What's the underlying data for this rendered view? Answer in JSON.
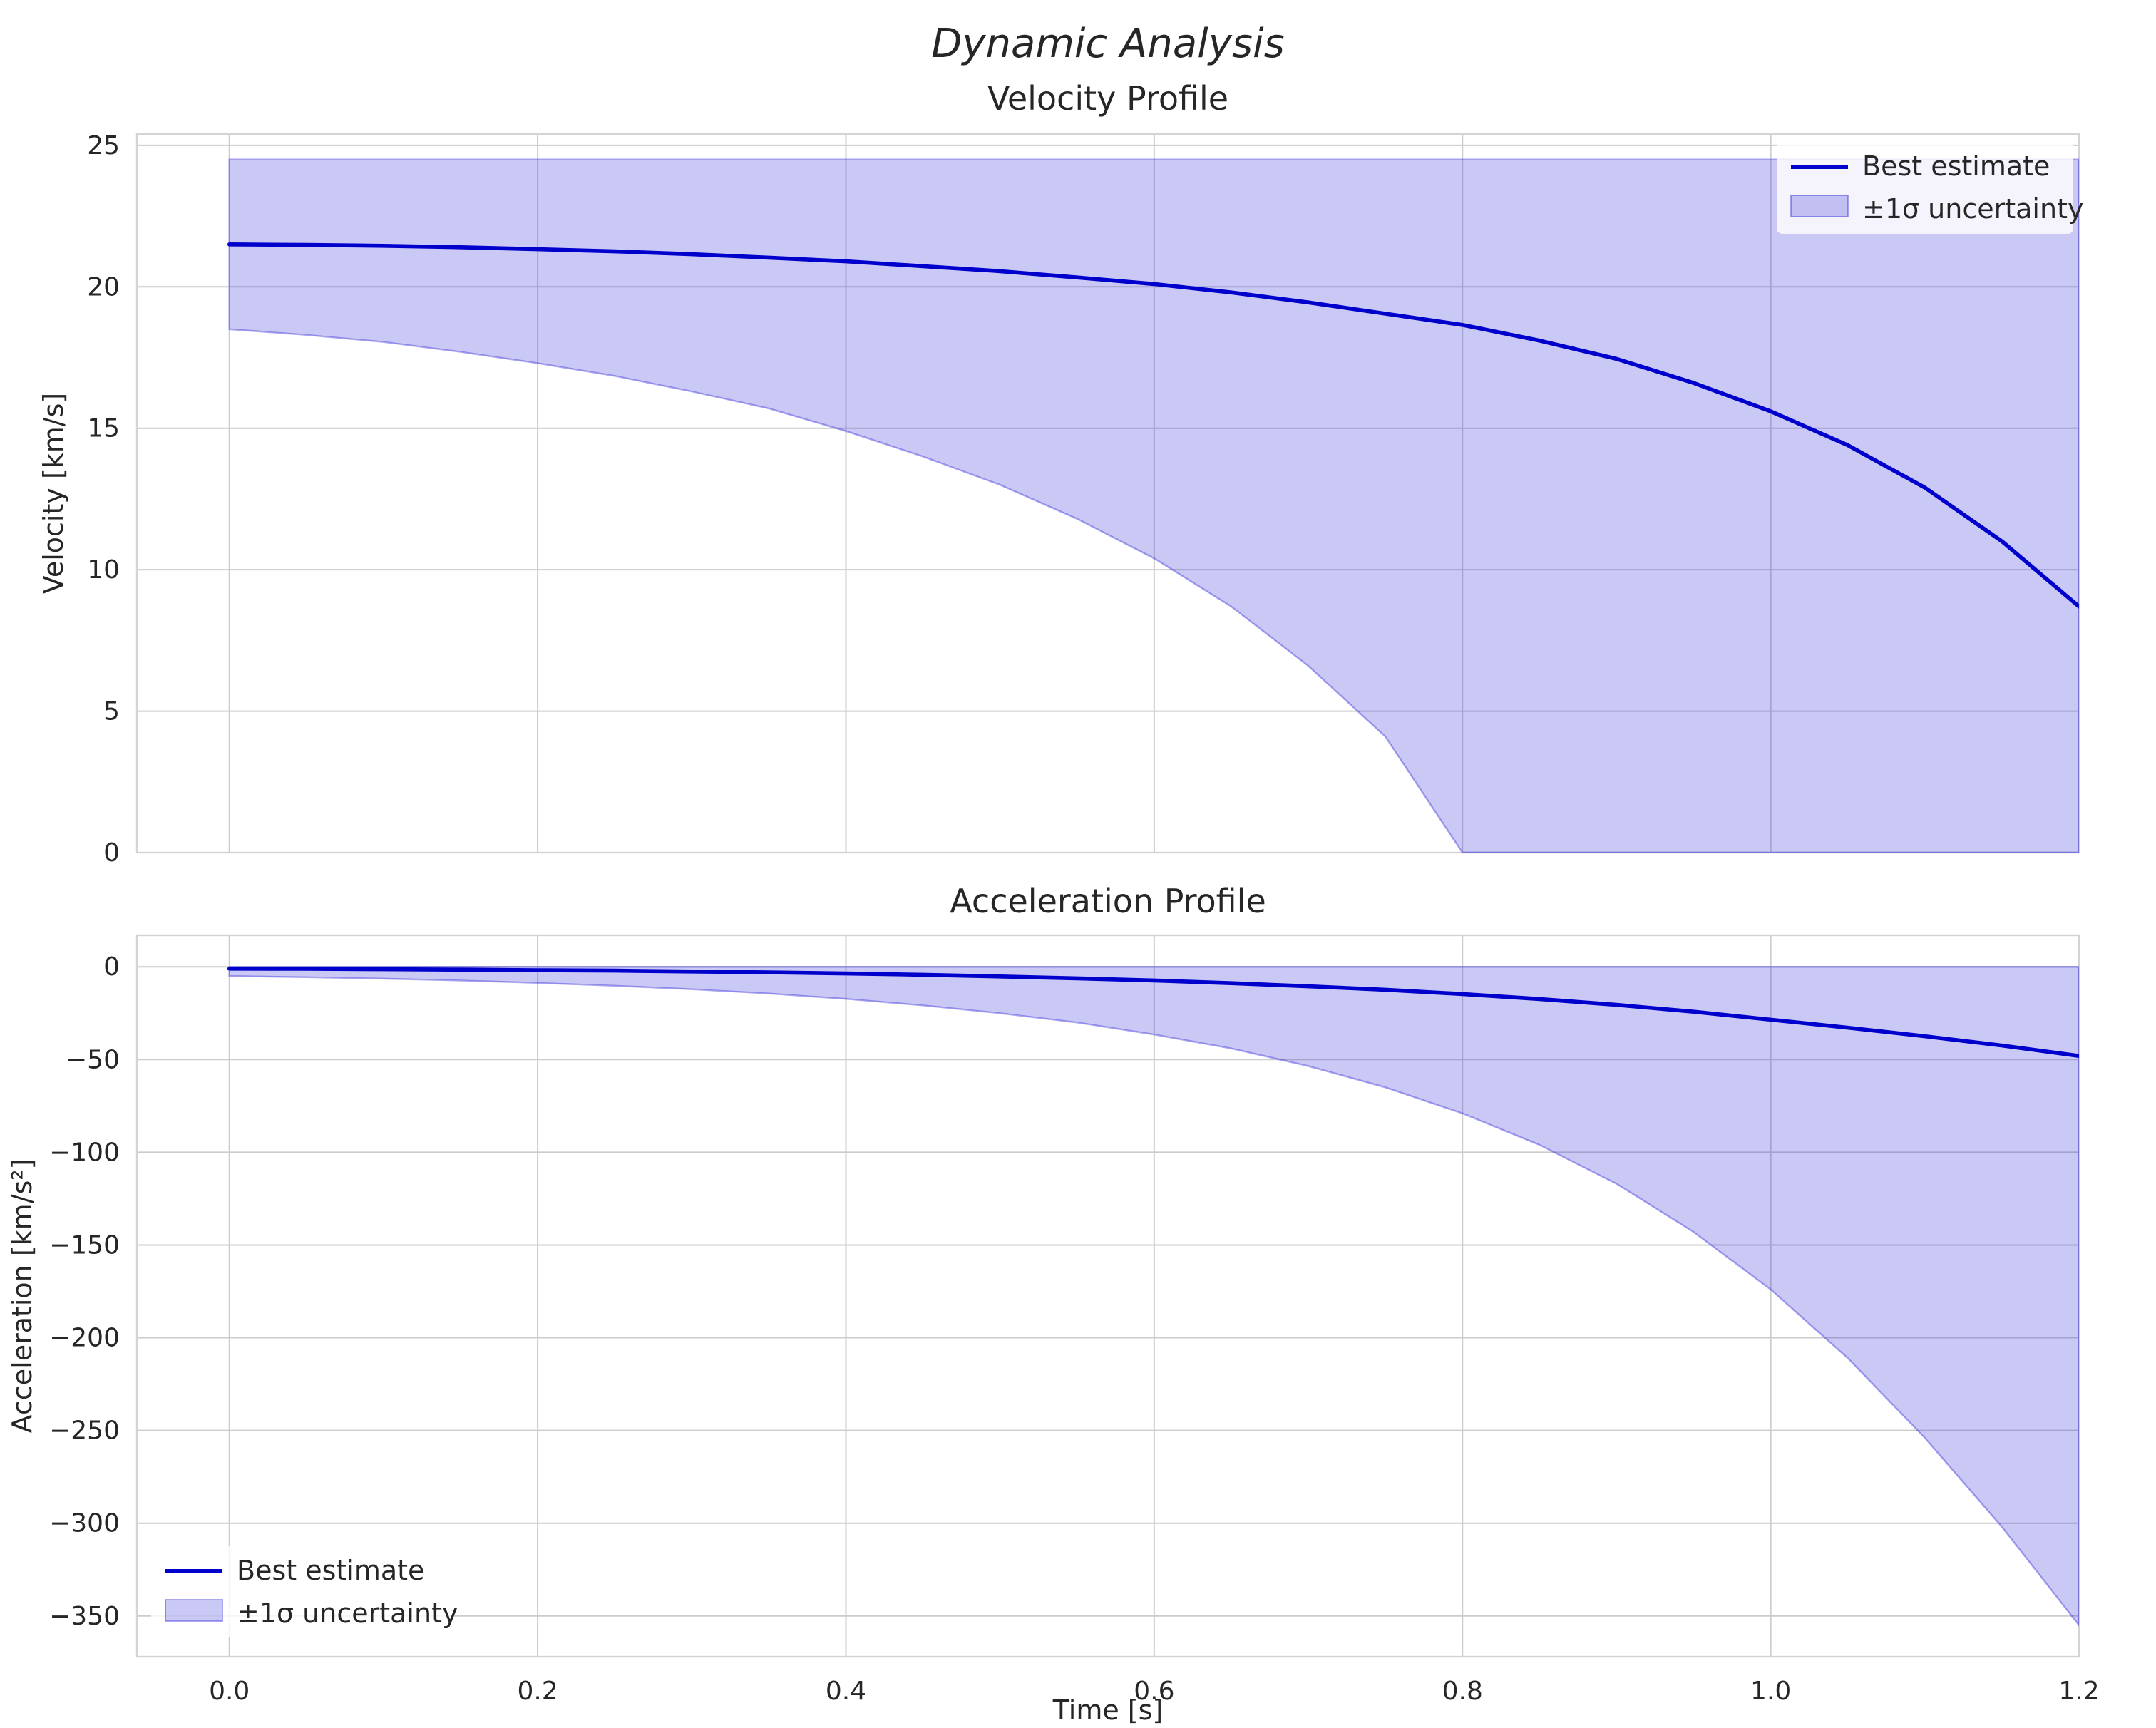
{
  "figure": {
    "title": "Dynamic Analysis",
    "xlabel": "Time [s]"
  },
  "colors": {
    "line": "#0000cc",
    "band_fill": "rgba(45,35,215,0.25)",
    "band_edge": "rgba(45,35,215,0.40)",
    "grid": "#cccccc",
    "axes_edge": "#d4d4d4",
    "text": "#262626"
  },
  "chart_data": [
    {
      "id": "velocity",
      "type": "line",
      "title": "Velocity Profile",
      "ylabel": "Velocity [km/s]",
      "xlim": [
        -0.06,
        1.2
      ],
      "ylim": [
        0,
        25.4
      ],
      "xticks": [
        0,
        0.2,
        0.4,
        0.6,
        0.8,
        1.0,
        1.2
      ],
      "xtick_labels": [
        "0.0",
        "0.2",
        "0.4",
        "0.6",
        "0.8",
        "1.0",
        "1.2"
      ],
      "yticks": [
        0,
        5,
        10,
        15,
        20,
        25
      ],
      "ytick_labels": [
        "0",
        "5",
        "10",
        "15",
        "20",
        "25"
      ],
      "grid": true,
      "legend": {
        "location": "upper right"
      },
      "series": [
        {
          "name": "Best estimate",
          "style": "line"
        },
        {
          "name": "±1σ uncertainty",
          "style": "band"
        }
      ],
      "x": [
        0,
        0.05,
        0.1,
        0.15,
        0.2,
        0.25,
        0.3,
        0.35,
        0.4,
        0.45,
        0.5,
        0.55,
        0.6,
        0.65,
        0.7,
        0.75,
        0.8,
        0.85,
        0.9,
        0.95,
        1.0,
        1.05,
        1.1,
        1.15,
        1.2
      ],
      "best": [
        21.5,
        21.48,
        21.45,
        21.4,
        21.33,
        21.25,
        21.15,
        21.03,
        20.9,
        20.73,
        20.55,
        20.33,
        20.1,
        19.8,
        19.45,
        19.05,
        18.65,
        18.1,
        17.45,
        16.6,
        15.6,
        14.4,
        12.9,
        11.0,
        8.7
      ],
      "band_upper": [
        24.5,
        24.5,
        24.5,
        24.5,
        24.5,
        24.5,
        24.5,
        24.5,
        24.5,
        24.5,
        24.5,
        24.5,
        24.5,
        24.5,
        24.5,
        24.5,
        24.5,
        24.5,
        24.5,
        24.5,
        24.5,
        24.5,
        24.5,
        24.5,
        24.5
      ],
      "band_lower": [
        18.5,
        18.3,
        18.05,
        17.7,
        17.3,
        16.85,
        16.3,
        15.7,
        14.9,
        14.0,
        13.0,
        11.8,
        10.4,
        8.7,
        6.6,
        4.1,
        0,
        0,
        0,
        0,
        0,
        0,
        0,
        0,
        0
      ]
    },
    {
      "id": "acceleration",
      "type": "line",
      "title": "Acceleration Profile",
      "ylabel": "Acceleration [km/s²]",
      "xlim": [
        -0.06,
        1.2
      ],
      "ylim": [
        -372,
        17
      ],
      "xticks": [
        0,
        0.2,
        0.4,
        0.6,
        0.8,
        1.0,
        1.2
      ],
      "xtick_labels": [
        "0.0",
        "0.2",
        "0.4",
        "0.6",
        "0.8",
        "1.0",
        "1.2"
      ],
      "yticks": [
        0,
        -50,
        -100,
        -150,
        -200,
        -250,
        -300,
        -350
      ],
      "ytick_labels": [
        "0",
        "−50",
        "−100",
        "−150",
        "−200",
        "−250",
        "−300",
        "−350"
      ],
      "grid": true,
      "legend": {
        "location": "lower left"
      },
      "series": [
        {
          "name": "Best estimate",
          "style": "line"
        },
        {
          "name": "±1σ uncertainty",
          "style": "band"
        }
      ],
      "x": [
        0,
        0.05,
        0.1,
        0.15,
        0.2,
        0.25,
        0.3,
        0.35,
        0.4,
        0.45,
        0.5,
        0.55,
        0.6,
        0.65,
        0.7,
        0.75,
        0.8,
        0.85,
        0.9,
        0.95,
        1.0,
        1.05,
        1.1,
        1.15,
        1.2
      ],
      "best": [
        -1.0,
        -1.1,
        -1.3,
        -1.5,
        -1.8,
        -2.1,
        -2.5,
        -3.0,
        -3.6,
        -4.3,
        -5.2,
        -6.2,
        -7.4,
        -8.8,
        -10.5,
        -12.4,
        -14.7,
        -17.4,
        -20.5,
        -24.2,
        -28.5,
        -32.8,
        -37.4,
        -42.4,
        -48.0
      ],
      "band_upper": [
        0,
        0,
        0,
        0,
        0,
        0,
        0,
        0,
        0,
        0,
        0,
        0,
        0,
        0,
        0,
        0,
        0,
        0,
        0,
        0,
        0,
        0,
        0,
        0,
        0
      ],
      "band_lower": [
        -5,
        -5.6,
        -6.4,
        -7.4,
        -8.7,
        -10.2,
        -12.1,
        -14.4,
        -17.3,
        -20.8,
        -25,
        -30,
        -36.5,
        -44,
        -53.5,
        -65,
        -79,
        -96,
        -117,
        -143,
        -174,
        -211,
        -254,
        -302,
        -355
      ]
    }
  ]
}
